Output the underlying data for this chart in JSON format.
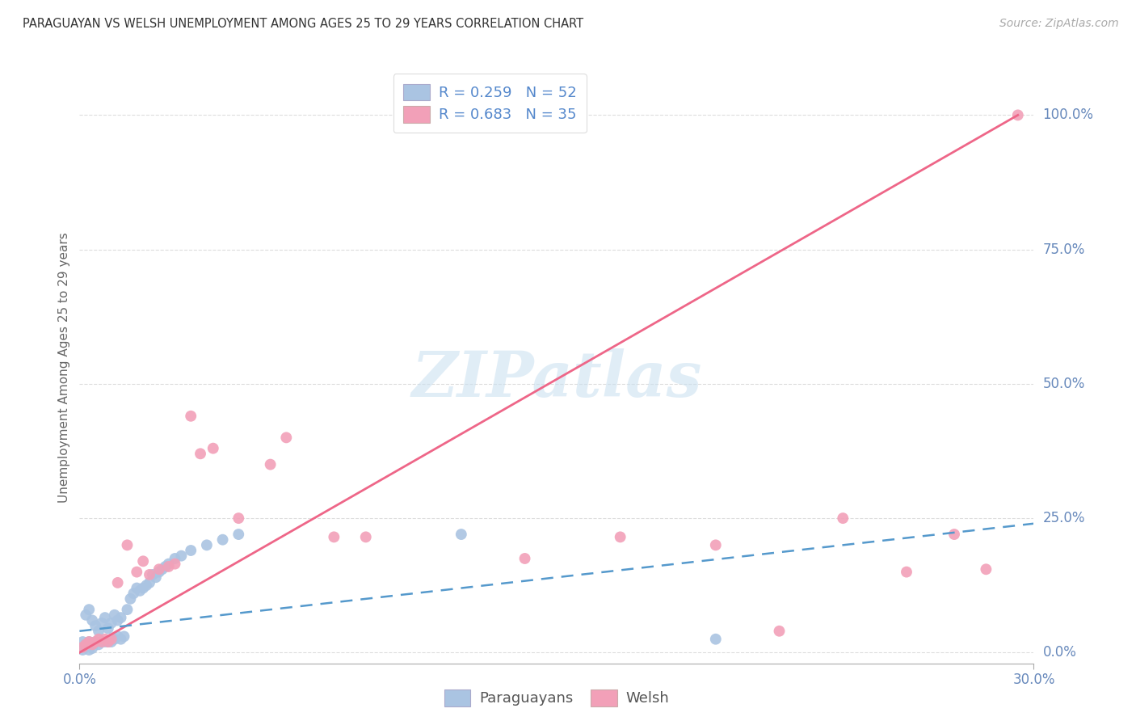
{
  "title": "PARAGUAYAN VS WELSH UNEMPLOYMENT AMONG AGES 25 TO 29 YEARS CORRELATION CHART",
  "source": "Source: ZipAtlas.com",
  "ylabel": "Unemployment Among Ages 25 to 29 years",
  "ytick_labels": [
    "0.0%",
    "25.0%",
    "50.0%",
    "75.0%",
    "100.0%"
  ],
  "ytick_values": [
    0.0,
    0.25,
    0.5,
    0.75,
    1.0
  ],
  "xmin": 0.0,
  "xmax": 0.3,
  "ymin": -0.02,
  "ymax": 1.08,
  "paraguayan_color": "#aac4e2",
  "welsh_color": "#f2a0b8",
  "paraguayan_line_color": "#5599cc",
  "welsh_line_color": "#ee6688",
  "watermark": "ZIPatlas",
  "par_line_x0": 0.0,
  "par_line_x1": 0.3,
  "par_line_y0": 0.04,
  "par_line_y1": 0.24,
  "wel_line_x0": 0.0,
  "wel_line_x1": 0.295,
  "wel_line_y0": 0.0,
  "wel_line_y1": 1.0,
  "par_x": [
    0.001,
    0.002,
    0.002,
    0.003,
    0.003,
    0.004,
    0.004,
    0.005,
    0.005,
    0.006,
    0.006,
    0.007,
    0.007,
    0.008,
    0.008,
    0.009,
    0.009,
    0.01,
    0.01,
    0.011,
    0.011,
    0.012,
    0.012,
    0.013,
    0.013,
    0.014,
    0.015,
    0.016,
    0.017,
    0.018,
    0.019,
    0.02,
    0.021,
    0.022,
    0.023,
    0.024,
    0.025,
    0.026,
    0.027,
    0.028,
    0.03,
    0.032,
    0.035,
    0.04,
    0.045,
    0.05,
    0.001,
    0.002,
    0.003,
    0.004,
    0.12,
    0.2
  ],
  "par_y": [
    0.02,
    0.015,
    0.07,
    0.02,
    0.08,
    0.015,
    0.06,
    0.02,
    0.05,
    0.015,
    0.04,
    0.02,
    0.055,
    0.02,
    0.065,
    0.02,
    0.045,
    0.02,
    0.055,
    0.025,
    0.07,
    0.03,
    0.06,
    0.025,
    0.065,
    0.03,
    0.08,
    0.1,
    0.11,
    0.12,
    0.115,
    0.12,
    0.125,
    0.13,
    0.145,
    0.14,
    0.15,
    0.155,
    0.16,
    0.165,
    0.175,
    0.18,
    0.19,
    0.2,
    0.21,
    0.22,
    0.005,
    0.01,
    0.005,
    0.008,
    0.22,
    0.025
  ],
  "wel_x": [
    0.001,
    0.002,
    0.003,
    0.004,
    0.005,
    0.006,
    0.007,
    0.008,
    0.009,
    0.01,
    0.012,
    0.015,
    0.018,
    0.02,
    0.022,
    0.025,
    0.028,
    0.03,
    0.035,
    0.038,
    0.042,
    0.05,
    0.06,
    0.065,
    0.08,
    0.09,
    0.14,
    0.17,
    0.2,
    0.22,
    0.24,
    0.26,
    0.275,
    0.285,
    0.295
  ],
  "wel_y": [
    0.01,
    0.015,
    0.02,
    0.015,
    0.02,
    0.025,
    0.02,
    0.025,
    0.02,
    0.025,
    0.13,
    0.2,
    0.15,
    0.17,
    0.145,
    0.155,
    0.16,
    0.165,
    0.44,
    0.37,
    0.38,
    0.25,
    0.35,
    0.4,
    0.215,
    0.215,
    0.175,
    0.215,
    0.2,
    0.04,
    0.25,
    0.15,
    0.22,
    0.155,
    1.0
  ]
}
